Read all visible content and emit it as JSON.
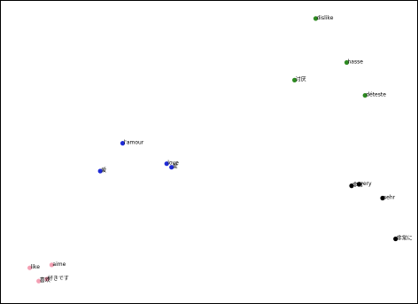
{
  "chart_data": {
    "type": "scatter",
    "title": "",
    "xlabel": "",
    "ylabel": "",
    "xlim": [
      0,
      100
    ],
    "ylim": [
      0,
      100
    ],
    "grid": false,
    "axis_ticks": false,
    "colors": {
      "pink": "#f4a0b4",
      "green": "#2e8b22",
      "blue": "#1f2bd6",
      "black": "#000000"
    },
    "points": [
      {
        "label": "dislike",
        "x": 76.2,
        "y": 95.5,
        "color": "green"
      },
      {
        "label": "hasse",
        "x": 83.8,
        "y": 80.5,
        "color": "green"
      },
      {
        "label": "讨厌",
        "x": 71.0,
        "y": 74.5,
        "color": "green"
      },
      {
        "label": "déteste",
        "x": 88.3,
        "y": 69.3,
        "color": "green"
      },
      {
        "label": "l'amour",
        "x": 28.8,
        "y": 53.0,
        "color": "blue"
      },
      {
        "label": "love",
        "x": 39.6,
        "y": 46.0,
        "color": "blue"
      },
      {
        "label": "爱",
        "x": 40.8,
        "y": 44.8,
        "color": "blue"
      },
      {
        "label": "爱",
        "x": 23.3,
        "y": 43.5,
        "color": "blue"
      },
      {
        "label": "非常",
        "x": 85.0,
        "y": 38.5,
        "color": "black"
      },
      {
        "label": "very",
        "x": 86.8,
        "y": 39.0,
        "color": "black"
      },
      {
        "label": "sehr",
        "x": 92.6,
        "y": 34.3,
        "color": "black"
      },
      {
        "label": "非常に",
        "x": 95.8,
        "y": 20.4,
        "color": "black"
      },
      {
        "label": "like",
        "x": 6.0,
        "y": 10.5,
        "color": "pink"
      },
      {
        "label": "aime",
        "x": 11.4,
        "y": 11.5,
        "color": "pink"
      },
      {
        "label": "喜欢",
        "x": 8.2,
        "y": 6.0,
        "color": "pink"
      },
      {
        "label": "好きです",
        "x": 10.2,
        "y": 6.7,
        "color": "pink"
      }
    ]
  }
}
